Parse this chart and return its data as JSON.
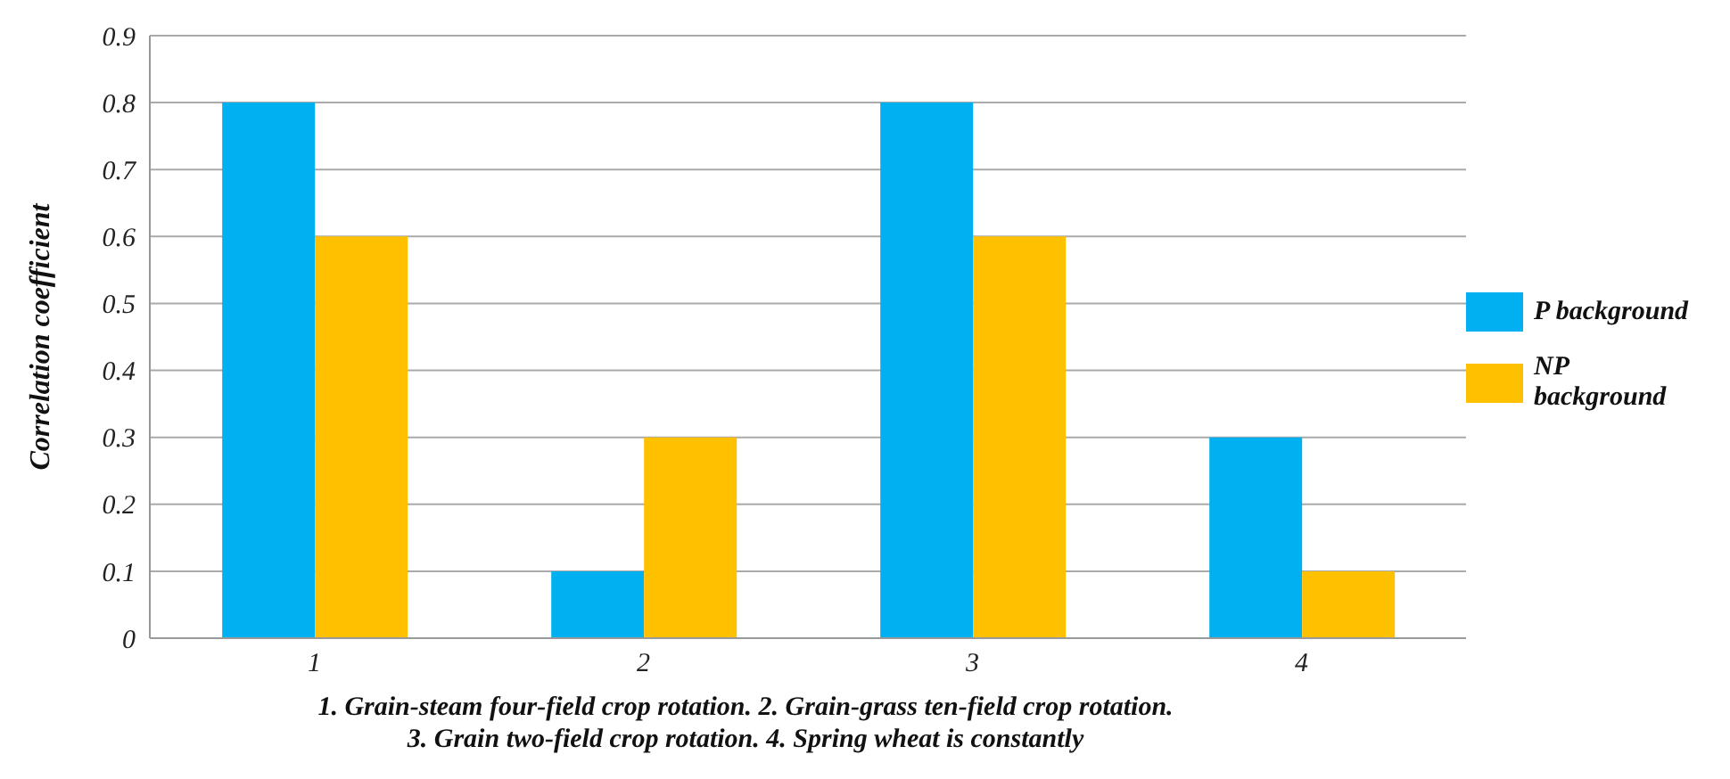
{
  "chart_data": {
    "type": "bar",
    "ylabel": "Correlation coefficient",
    "categories": [
      "1",
      "2",
      "3",
      "4"
    ],
    "series": [
      {
        "name": "P background",
        "color": "#00b0f0",
        "values": [
          0.8,
          0.1,
          0.8,
          0.3
        ]
      },
      {
        "name": "NP background",
        "color": "#ffc000",
        "values": [
          0.6,
          0.3,
          0.6,
          0.1
        ]
      }
    ],
    "ylim": [
      0,
      0.9
    ],
    "yticks": [
      0,
      0.1,
      0.2,
      0.3,
      0.4,
      0.5,
      0.6,
      0.7,
      0.8,
      0.9
    ],
    "grid": "y",
    "legend": "right",
    "annotations": [
      "1. Grain-steam four-field crop rotation. 2. Grain-grass ten-field crop rotation.",
      "3. Grain two-field crop rotation. 4. Spring wheat is constantly"
    ]
  }
}
